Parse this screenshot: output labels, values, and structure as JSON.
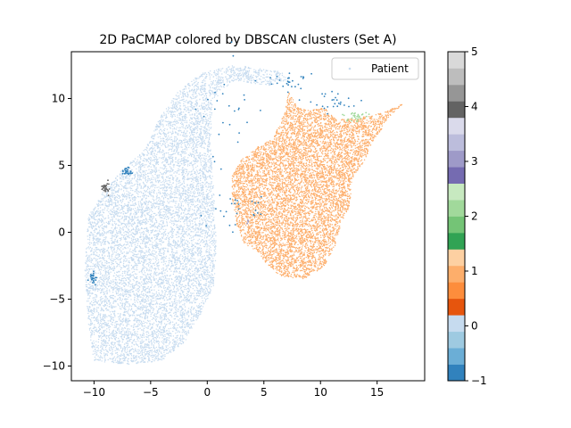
{
  "chart_data": {
    "type": "scatter",
    "title": "2D PaCMAP colored by DBSCAN clusters (Set A)",
    "xlabel": "",
    "ylabel": "",
    "xlim": [
      -12,
      19.2
    ],
    "ylim": [
      -11.1,
      13.5
    ],
    "x_ticks": [
      -10,
      -5,
      0,
      5,
      10,
      15
    ],
    "y_ticks": [
      -10,
      -5,
      0,
      5,
      10
    ],
    "grid": false,
    "legend": {
      "position": "top-right",
      "entries": [
        "Patient"
      ],
      "marker_color": "#c6dbef"
    },
    "colorbar": {
      "range": [
        -1,
        5
      ],
      "ticks": [
        -1,
        0,
        1,
        2,
        3,
        4,
        5
      ],
      "colormap": "tab20c",
      "colors": [
        "#3182bd",
        "#6baed6",
        "#9ecae1",
        "#c6dbef",
        "#e6550d",
        "#fd8d3c",
        "#fdae6b",
        "#fdd0a2",
        "#31a354",
        "#74c476",
        "#a1d99b",
        "#c7e9c0",
        "#756bb1",
        "#9e9ac8",
        "#bcbddc",
        "#dadaeb",
        "#636363",
        "#969696",
        "#bdbdbd",
        "#d9d9d9"
      ]
    },
    "series": [
      {
        "label": -1,
        "color": "#3182bd",
        "approx_points": 160,
        "regions": [
          [
            2.2,
            8.5,
            2.8,
            4.8
          ],
          [
            2.6,
            1.5,
            3.0,
            1.4
          ],
          [
            11.0,
            9.8,
            2.4,
            0.8
          ],
          [
            7.5,
            11.3,
            2.0,
            0.6
          ],
          [
            -10.1,
            -3.4,
            0.3,
            0.4
          ],
          [
            -7.1,
            4.5,
            0.5,
            0.3
          ]
        ]
      },
      {
        "label": 0,
        "color": "#c6dbef",
        "approx_points": 9000,
        "outline": [
          [
            -10.5,
            1.2
          ],
          [
            -9.2,
            3.0
          ],
          [
            -7.6,
            4.6
          ],
          [
            -5.5,
            6.2
          ],
          [
            -4.2,
            8.6
          ],
          [
            -2.6,
            10.5
          ],
          [
            -0.5,
            11.9
          ],
          [
            2.5,
            12.5
          ],
          [
            6.5,
            12.0
          ],
          [
            7.3,
            11.4
          ],
          [
            5.5,
            11.0
          ],
          [
            2.2,
            11.3
          ],
          [
            0.5,
            9.8
          ],
          [
            0.3,
            7.0
          ],
          [
            0.6,
            3.0
          ],
          [
            0.8,
            -1.0
          ],
          [
            0.6,
            -4.0
          ],
          [
            -0.5,
            -6.0
          ],
          [
            -2.0,
            -8.2
          ],
          [
            -4.0,
            -9.6
          ],
          [
            -7.0,
            -9.9
          ],
          [
            -10.0,
            -9.6
          ],
          [
            -10.5,
            -7.0
          ],
          [
            -10.8,
            -3.0
          ],
          [
            -10.6,
            0.0
          ]
        ]
      },
      {
        "label": 1,
        "color": "#fdae6b",
        "approx_points": 7500,
        "outline": [
          [
            2.2,
            4.2
          ],
          [
            3.0,
            5.4
          ],
          [
            4.5,
            6.4
          ],
          [
            5.8,
            7.0
          ],
          [
            6.8,
            8.9
          ],
          [
            7.2,
            10.5
          ],
          [
            7.9,
            9.4
          ],
          [
            8.8,
            9.1
          ],
          [
            10.4,
            9.3
          ],
          [
            11.4,
            8.4
          ],
          [
            12.7,
            8.5
          ],
          [
            14.6,
            8.7
          ],
          [
            16.2,
            9.2
          ],
          [
            17.3,
            9.6
          ],
          [
            16.0,
            8.6
          ],
          [
            15.3,
            7.6
          ],
          [
            14.6,
            6.8
          ],
          [
            14.0,
            5.5
          ],
          [
            12.8,
            4.0
          ],
          [
            12.6,
            2.0
          ],
          [
            11.8,
            0.6
          ],
          [
            11.3,
            -1.0
          ],
          [
            10.3,
            -2.6
          ],
          [
            8.5,
            -3.5
          ],
          [
            6.4,
            -3.3
          ],
          [
            5.4,
            -2.5
          ],
          [
            4.2,
            -1.3
          ],
          [
            3.2,
            -0.8
          ],
          [
            2.6,
            0.6
          ],
          [
            2.2,
            2.4
          ]
        ]
      },
      {
        "label": 2,
        "color": "#a1d99b",
        "approx_points": 30,
        "regions": [
          [
            13.0,
            8.6,
            0.9,
            0.35
          ]
        ]
      },
      {
        "label": 3,
        "color": "#9e9ac8",
        "approx_points": 4,
        "regions": [
          [
            3.6,
            0.8,
            0.2,
            0.25
          ]
        ]
      },
      {
        "label": 4,
        "color": "#636363",
        "approx_points": 30,
        "regions": [
          [
            -9.0,
            3.3,
            0.35,
            0.45
          ]
        ]
      }
    ]
  }
}
